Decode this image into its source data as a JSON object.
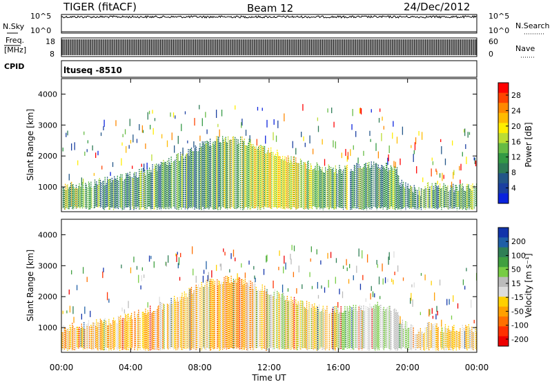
{
  "header": {
    "radar": "TIGER (fitACF)",
    "beam": "Beam 12",
    "date": "24/Dec/2012"
  },
  "aux_panels": {
    "nsky_label": "N.Sky",
    "nsky_ticks": [
      "10^5",
      "10^0"
    ],
    "nsearch_label": "N.Search",
    "nsearch_ticks": [
      "10^5",
      "10^0"
    ],
    "freq_label_1": "Freq.",
    "freq_label_2": "[MHz]",
    "freq_ticks": [
      "18",
      "8"
    ],
    "nave_label": "Nave",
    "nave_ticks": [
      "60",
      "0"
    ],
    "cpid_label": "CPID",
    "cpid_value": "ltuseq -8510"
  },
  "chart_data": [
    {
      "type": "heatmap",
      "title": "",
      "ylabel": "Slant Range [km]",
      "xlabel": "",
      "x_range_hours": [
        0,
        24
      ],
      "ylim": [
        200,
        4500
      ],
      "yticks": [
        "1000",
        "2000",
        "3000",
        "4000"
      ],
      "colorbar": {
        "label": "Power [dB]",
        "ticks": [
          "28",
          "24",
          "20",
          "16",
          "12",
          "8",
          "4"
        ],
        "colors": [
          "#ff0000",
          "#ff4400",
          "#ff8800",
          "#ffbb00",
          "#ffee00",
          "#bbdd33",
          "#66bb44",
          "#339944",
          "#2d7a55",
          "#225588",
          "#1a3fa0",
          "#0a22dd"
        ],
        "vmin": 0,
        "vmax": 32
      }
    },
    {
      "type": "heatmap",
      "title": "",
      "ylabel": "Slant Range [km]",
      "xlabel": "Time UT",
      "x_range_hours": [
        0,
        24
      ],
      "ylim": [
        200,
        4500
      ],
      "yticks": [
        "1000",
        "2000",
        "3000",
        "4000"
      ],
      "xticks": [
        "00:00",
        "04:00",
        "08:00",
        "12:00",
        "16:00",
        "20:00",
        "00:00"
      ],
      "colorbar": {
        "label": "Velocity [m s⁻¹]",
        "ticks": [
          "200",
          "100",
          "50",
          "15",
          "-15",
          "-50",
          "-100",
          "-200"
        ],
        "colors": [
          "#1133aa",
          "#1f5fa6",
          "#2f7f55",
          "#3f9f3f",
          "#77cc44",
          "#bbbbbb",
          "#dddddd",
          "#ffd000",
          "#ffa000",
          "#ff7000",
          "#ff3000",
          "#ee0000"
        ],
        "vmin": -250,
        "vmax": 250
      }
    }
  ]
}
